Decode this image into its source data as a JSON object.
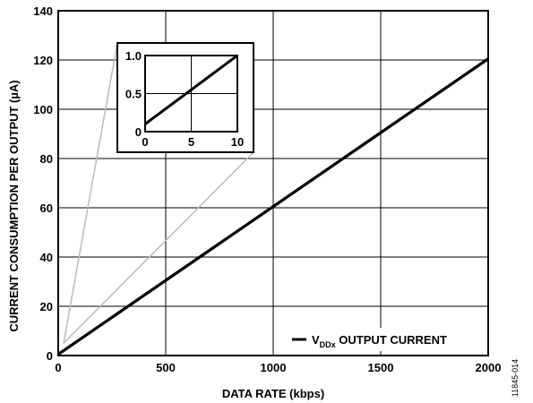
{
  "chart_data": [
    {
      "type": "line",
      "xlabel": "DATA RATE (kbps)",
      "ylabel": "CURRENT CONSUMPTION PER OUTPUT (µA)",
      "xlim": [
        0,
        2000
      ],
      "ylim": [
        0,
        140
      ],
      "x_ticks": [
        "0",
        "500",
        "1000",
        "1500",
        "2000"
      ],
      "y_ticks": [
        "0",
        "20",
        "40",
        "60",
        "80",
        "100",
        "120",
        "140"
      ],
      "grid": true,
      "legend_position": "bottom-right",
      "series": [
        {
          "name": "V",
          "name_subscript": "DDx",
          "name_suffix": " OUTPUT CURRENT",
          "x": [
            0,
            500,
            1000,
            1500,
            2000
          ],
          "y": [
            0.5,
            30.5,
            60.5,
            90.5,
            120.5
          ],
          "color": "#000000"
        }
      ]
    },
    {
      "type": "line",
      "role": "inset",
      "xlim": [
        0,
        10
      ],
      "ylim": [
        0,
        1.0
      ],
      "x_ticks": [
        "0",
        "5",
        "10"
      ],
      "y_ticks": [
        "0",
        "0.5",
        "1.0"
      ],
      "grid": true,
      "series": [
        {
          "x": [
            0,
            5,
            10
          ],
          "y": [
            0.1,
            0.55,
            1.0
          ],
          "color": "#000000"
        }
      ]
    }
  ],
  "figure_id": "11845-014",
  "colors": {
    "line": "#000000",
    "grid": "#000000",
    "connector": "#bbbbbb"
  }
}
